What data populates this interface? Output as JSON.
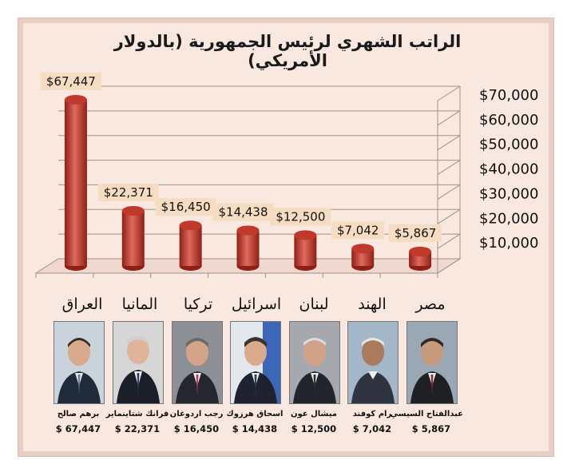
{
  "chart_data": {
    "type": "bar",
    "title": "الراتب الشهري لرئيس الجمهورية   (بالدولار الأمريكي)",
    "categories": [
      "العراق",
      "المانيا",
      "تركيا",
      "اسرائيل",
      "لبنان",
      "الهند",
      "مصر"
    ],
    "values": [
      67447,
      22371,
      16450,
      14438,
      12500,
      7042,
      5867
    ],
    "data_labels": [
      "$67,447",
      "$22,371",
      "$16,450",
      "$14,438",
      "$12,500",
      "$7,042",
      "$5,867"
    ],
    "y_ticks": [
      "$10,000",
      "$20,000",
      "$30,000",
      "$40,000",
      "$50,000",
      "$60,000",
      "$70,000"
    ],
    "y_tick_values": [
      10000,
      20000,
      30000,
      40000,
      50000,
      60000,
      70000
    ],
    "ylim": [
      0,
      70000
    ],
    "axis_position": "right",
    "grid": true,
    "colors": {
      "bar": "#c0392b",
      "bar_dark": "#8e1f17",
      "bar_light": "#e06a5c",
      "label_bg": "#f6dcc0",
      "grid": "#a48f88"
    }
  },
  "people": [
    {
      "name": "برهم صالح",
      "salary": "$ 67,447"
    },
    {
      "name": "فرانك شتاينماير",
      "salary": "$ 22,371"
    },
    {
      "name": "رجب اردوغان",
      "salary": "$ 16,450"
    },
    {
      "name": "اسحاق هرزوك",
      "salary": "$ 14,438"
    },
    {
      "name": "ميشال عون",
      "salary": "$ 12,500"
    },
    {
      "name": "رام كوفند",
      "salary": "$ 7,042"
    },
    {
      "name": "عبدالفتاح السيسي",
      "salary": "$ 5,867"
    }
  ]
}
